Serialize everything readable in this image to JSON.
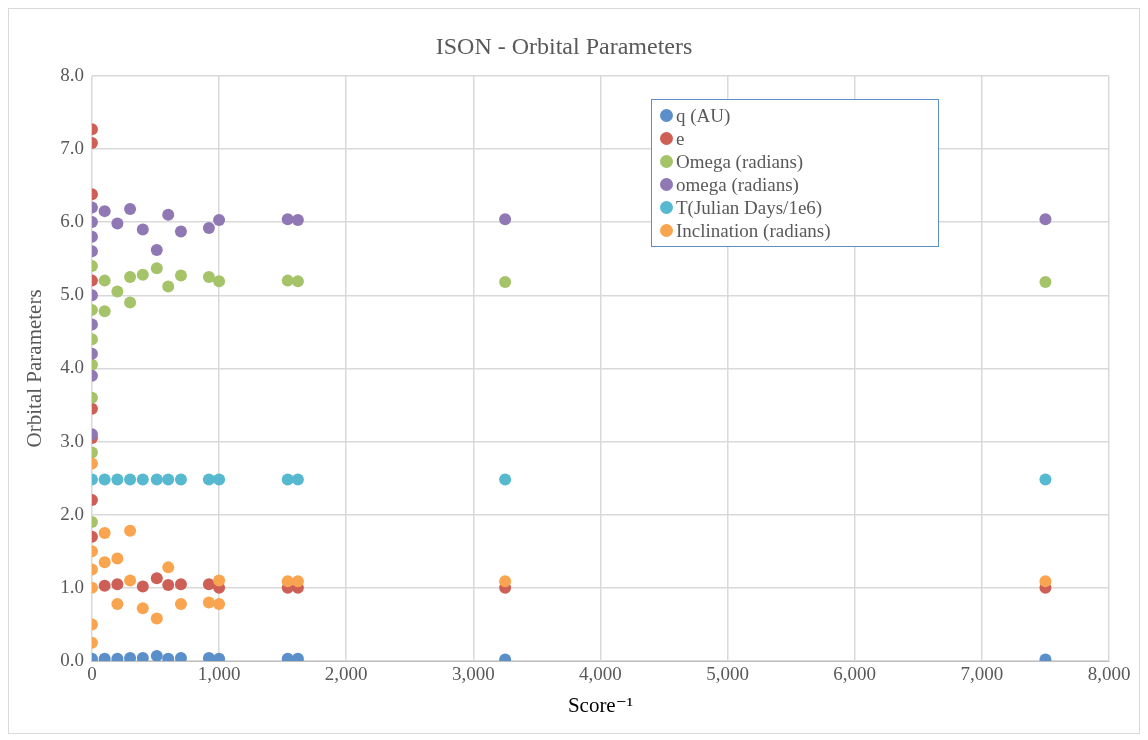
{
  "chart_data": {
    "type": "scatter",
    "title": "ISON - Orbital Parameters",
    "xlabel": "Score⁻¹",
    "ylabel": "Orbital Parameters",
    "series": [
      {
        "name": "q (AU)",
        "color": "#5b8fc9",
        "x": [
          0,
          100,
          200,
          300,
          400,
          510,
          600,
          700,
          920,
          1000,
          1540,
          1620,
          3250,
          7500
        ],
        "values": [
          0.03,
          0.03,
          0.03,
          0.04,
          0.04,
          0.07,
          0.03,
          0.04,
          0.04,
          0.03,
          0.03,
          0.03,
          0.02,
          0.02
        ]
      },
      {
        "name": "e",
        "color": "#cd5f56",
        "x": [
          0,
          0,
          0,
          0,
          0,
          0,
          0,
          0,
          100,
          200,
          400,
          510,
          600,
          700,
          920,
          1000,
          1540,
          1620,
          3250,
          7500
        ],
        "values": [
          7.27,
          7.08,
          6.38,
          5.2,
          3.45,
          3.05,
          2.2,
          1.7,
          1.03,
          1.05,
          1.02,
          1.13,
          1.04,
          1.05,
          1.05,
          1.0,
          1.0,
          1.0,
          1.0,
          1.0
        ]
      },
      {
        "name": "Omega (radians)",
        "color": "#a5c46a",
        "x": [
          0,
          0,
          0,
          0,
          0,
          0,
          0,
          100,
          100,
          200,
          300,
          300,
          400,
          510,
          600,
          700,
          920,
          1000,
          1540,
          1620,
          3250,
          7500
        ],
        "values": [
          5.4,
          4.8,
          4.4,
          4.05,
          3.6,
          2.85,
          1.9,
          5.2,
          4.78,
          5.05,
          5.25,
          4.9,
          5.28,
          5.37,
          5.12,
          5.27,
          5.25,
          5.19,
          5.2,
          5.19,
          5.18,
          5.18
        ]
      },
      {
        "name": "omega (radians)",
        "color": "#8f78b4",
        "x": [
          0,
          0,
          0,
          0,
          0,
          0,
          0,
          0,
          0,
          100,
          200,
          300,
          400,
          510,
          600,
          700,
          920,
          1000,
          1540,
          1620,
          3250,
          7500
        ],
        "values": [
          6.2,
          6.0,
          5.8,
          5.6,
          5.0,
          4.6,
          4.2,
          3.9,
          3.1,
          6.15,
          5.98,
          6.18,
          5.9,
          5.62,
          6.1,
          5.87,
          5.92,
          6.03,
          6.04,
          6.03,
          6.04,
          6.04
        ]
      },
      {
        "name": "T(Julian Days/1e6)",
        "color": "#56b9d0",
        "x": [
          0,
          100,
          200,
          300,
          400,
          510,
          600,
          700,
          920,
          1000,
          1540,
          1620,
          3250,
          7500
        ],
        "values": [
          2.48,
          2.48,
          2.48,
          2.48,
          2.48,
          2.48,
          2.48,
          2.48,
          2.48,
          2.48,
          2.48,
          2.48,
          2.48,
          2.48
        ]
      },
      {
        "name": "Inclination (radians)",
        "color": "#f9a54f",
        "x": [
          0,
          0,
          0,
          0,
          0,
          0,
          100,
          300,
          100,
          200,
          300,
          200,
          400,
          510,
          600,
          700,
          920,
          1000,
          1000,
          1540,
          1620,
          3250,
          7500
        ],
        "values": [
          2.7,
          1.5,
          1.25,
          1.0,
          0.5,
          0.25,
          1.75,
          1.78,
          1.35,
          1.4,
          1.1,
          0.78,
          0.72,
          0.58,
          1.28,
          0.78,
          0.8,
          0.78,
          1.1,
          1.09,
          1.09,
          1.09,
          1.09
        ]
      }
    ],
    "xlim": [
      0,
      8000
    ],
    "xticks": [
      {
        "value": 0,
        "label": "0"
      },
      {
        "value": 1000,
        "label": "1,000"
      },
      {
        "value": 2000,
        "label": "2,000"
      },
      {
        "value": 3000,
        "label": "3,000"
      },
      {
        "value": 4000,
        "label": "4,000"
      },
      {
        "value": 5000,
        "label": "5,000"
      },
      {
        "value": 6000,
        "label": "6,000"
      },
      {
        "value": 7000,
        "label": "7,000"
      },
      {
        "value": 8000,
        "label": "8,000"
      }
    ],
    "ylim": [
      0,
      8
    ],
    "yticks": [
      {
        "value": 0,
        "label": "0.0"
      },
      {
        "value": 1,
        "label": "1.0"
      },
      {
        "value": 2,
        "label": "2.0"
      },
      {
        "value": 3,
        "label": "3.0"
      },
      {
        "value": 4,
        "label": "4.0"
      },
      {
        "value": 5,
        "label": "5.0"
      },
      {
        "value": 6,
        "label": "6.0"
      },
      {
        "value": 7,
        "label": "7.0"
      },
      {
        "value": 8,
        "label": "8.0"
      }
    ],
    "grid": true,
    "legend": "top right",
    "marker": "circle"
  }
}
